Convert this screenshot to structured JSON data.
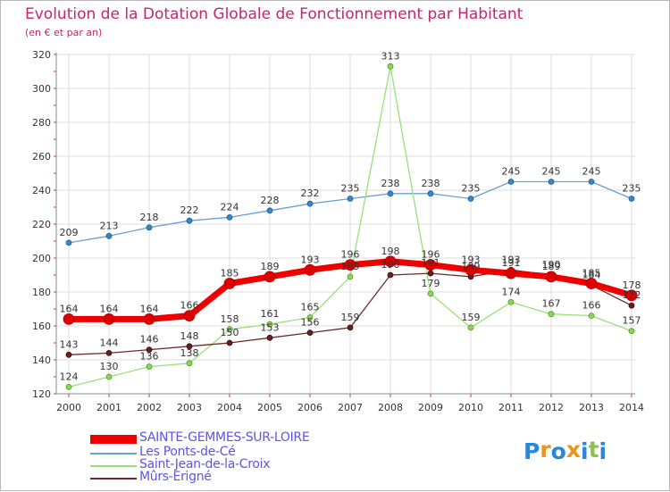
{
  "title": "Evolution de la Dotation Globale de Fonctionnement par Habitant",
  "subtitle": "(en € et par an)",
  "logo": {
    "text": "Proxiti",
    "letters": [
      "P",
      "r",
      "o",
      "x",
      "i",
      "t",
      "i"
    ],
    "colors": [
      "#2a86d6",
      "#e8951e",
      "#2a86d6",
      "#e8951e",
      "#2a86d6",
      "#8bc34a",
      "#2a86d6"
    ]
  },
  "chart_data": {
    "type": "line",
    "title": "Evolution de la Dotation Globale de Fonctionnement par Habitant",
    "ylabel": "(en € et par an)",
    "xlabel": "",
    "ylim": [
      120,
      320
    ],
    "yticks": [
      120,
      140,
      160,
      180,
      200,
      220,
      240,
      260,
      280,
      300,
      320
    ],
    "grid": true,
    "categories": [
      "2000",
      "2001",
      "2002",
      "2003",
      "2004",
      "2005",
      "2006",
      "2007",
      "2008",
      "2009",
      "2010",
      "2011",
      "2012",
      "2013",
      "2014"
    ],
    "series": [
      {
        "name": "SAINTE-GEMMES-SUR-LOIRE",
        "color": "#ee0000",
        "values": [
          164,
          164,
          164,
          166,
          185,
          189,
          193,
          196,
          198,
          196,
          193,
          191,
          189,
          185,
          178
        ]
      },
      {
        "name": "Les Ponts-de-Cé",
        "color": "#6a9fd0",
        "values": [
          209,
          213,
          218,
          222,
          224,
          228,
          232,
          235,
          238,
          238,
          235,
          245,
          245,
          245,
          235
        ]
      },
      {
        "name": "Saint-Jean-de-la-Croix",
        "color": "#99e07a",
        "values": [
          124,
          130,
          136,
          138,
          158,
          161,
          165,
          189,
          313,
          179,
          159,
          174,
          167,
          166,
          157
        ]
      },
      {
        "name": "Mûrs-Erigné",
        "color": "#6e2a2a",
        "values": [
          143,
          144,
          146,
          148,
          150,
          153,
          156,
          159,
          190,
          191,
          189,
          193,
          190,
          184,
          172
        ]
      }
    ]
  }
}
